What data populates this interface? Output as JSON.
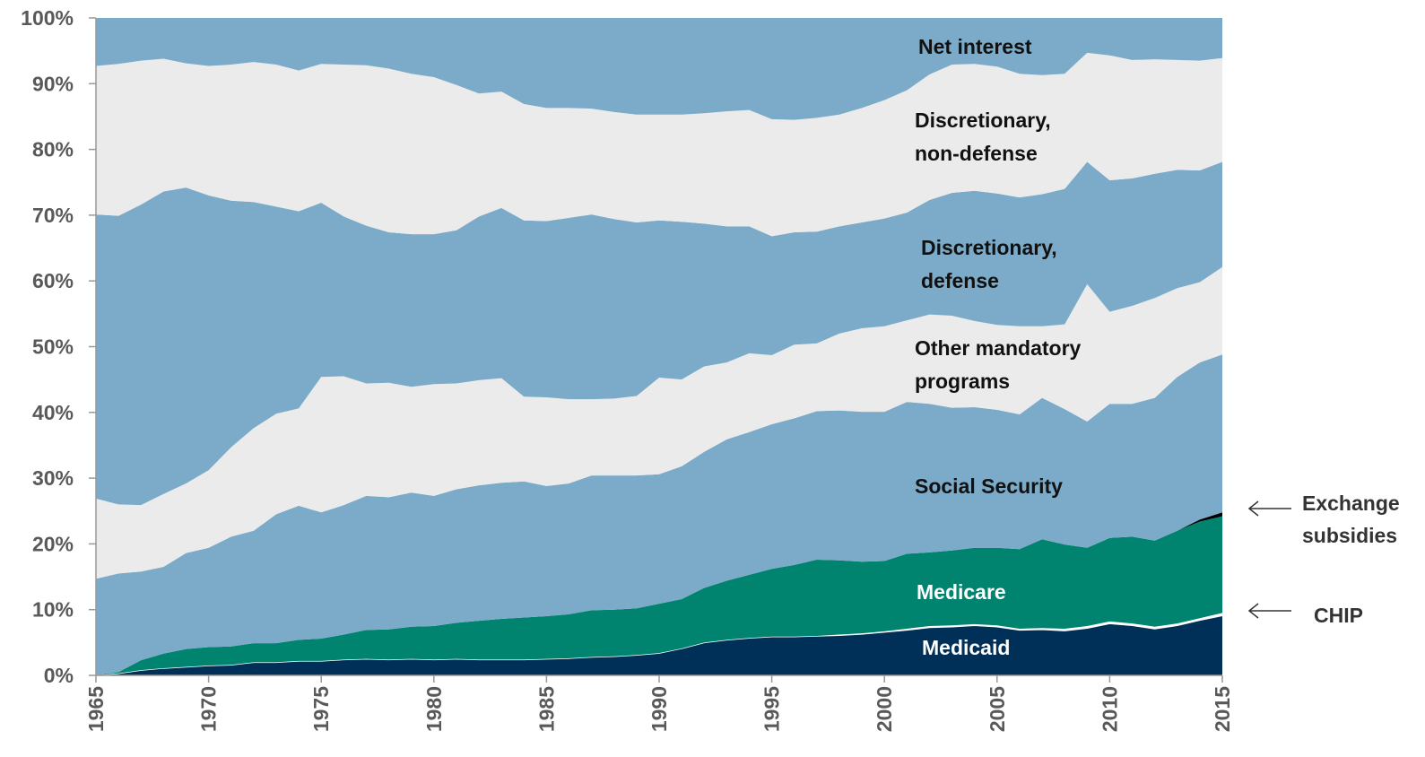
{
  "chart_data": {
    "type": "stacked-area",
    "x": [
      1965,
      1966,
      1967,
      1968,
      1969,
      1970,
      1971,
      1972,
      1973,
      1974,
      1975,
      1976,
      1977,
      1978,
      1979,
      1980,
      1981,
      1982,
      1983,
      1984,
      1985,
      1986,
      1987,
      1988,
      1989,
      1990,
      1991,
      1992,
      1993,
      1994,
      1995,
      1996,
      1997,
      1998,
      1999,
      2000,
      2001,
      2002,
      2003,
      2004,
      2005,
      2006,
      2007,
      2008,
      2009,
      2010,
      2011,
      2012,
      2013,
      2014,
      2015
    ],
    "xlim": [
      1965,
      2015
    ],
    "xticks": [
      1965,
      1970,
      1975,
      1980,
      1985,
      1990,
      1995,
      2000,
      2005,
      2010,
      2015
    ],
    "ylim": [
      0,
      100
    ],
    "yticks": [
      {
        "value": 0,
        "label": "0%"
      },
      {
        "value": 10,
        "label": "10%"
      },
      {
        "value": 20,
        "label": "20%"
      },
      {
        "value": 30,
        "label": "30%"
      },
      {
        "value": 40,
        "label": "40%"
      },
      {
        "value": 50,
        "label": "50%"
      },
      {
        "value": 60,
        "label": "60%"
      },
      {
        "value": 70,
        "label": "70%"
      },
      {
        "value": 80,
        "label": "80%"
      },
      {
        "value": 90,
        "label": "90%"
      },
      {
        "value": 100,
        "label": "100%"
      }
    ],
    "series": [
      {
        "name": "Medicaid",
        "color": "#003057",
        "values": [
          0,
          0.3,
          0.8,
          1.1,
          1.3,
          1.5,
          1.6,
          2.0,
          2.0,
          2.2,
          2.2,
          2.4,
          2.5,
          2.4,
          2.5,
          2.4,
          2.5,
          2.4,
          2.4,
          2.4,
          2.5,
          2.6,
          2.8,
          2.9,
          3.1,
          3.4,
          4.1,
          5.0,
          5.4,
          5.7,
          5.9,
          5.9,
          6.0,
          6.1,
          6.3,
          6.6,
          6.9,
          7.3,
          7.4,
          7.6,
          7.4,
          6.9,
          7.0,
          6.8,
          7.2,
          7.9,
          7.6,
          7.1,
          7.6,
          8.4,
          9.1
        ]
      },
      {
        "name": "CHIP",
        "color": "#ffffff",
        "values": [
          0,
          0,
          0,
          0,
          0,
          0,
          0,
          0,
          0,
          0,
          0,
          0,
          0,
          0,
          0,
          0,
          0,
          0,
          0,
          0,
          0,
          0,
          0,
          0,
          0,
          0,
          0,
          0,
          0,
          0,
          0,
          0,
          0,
          0.1,
          0.1,
          0.1,
          0.2,
          0.2,
          0.2,
          0.2,
          0.2,
          0.2,
          0.2,
          0.3,
          0.3,
          0.3,
          0.3,
          0.3,
          0.3,
          0.3,
          0.4
        ]
      },
      {
        "name": "Medicare",
        "color": "#00836f",
        "values": [
          0,
          0.2,
          1.5,
          2.2,
          2.7,
          2.8,
          2.8,
          2.9,
          2.9,
          3.2,
          3.4,
          3.8,
          4.4,
          4.6,
          4.9,
          5.1,
          5.5,
          5.9,
          6.2,
          6.4,
          6.5,
          6.7,
          7.1,
          7.1,
          7.1,
          7.5,
          7.5,
          8.3,
          9.0,
          9.6,
          10.3,
          10.9,
          11.6,
          11.3,
          10.9,
          10.7,
          11.4,
          11.2,
          11.4,
          11.6,
          11.8,
          12.1,
          13.5,
          12.8,
          11.9,
          12.7,
          13.2,
          13.1,
          14.1,
          14.7,
          14.7
        ]
      },
      {
        "name": "Exchange subsidies",
        "color": "#000000",
        "values": [
          0,
          0,
          0,
          0,
          0,
          0,
          0,
          0,
          0,
          0,
          0,
          0,
          0,
          0,
          0,
          0,
          0,
          0,
          0,
          0,
          0,
          0,
          0,
          0,
          0,
          0,
          0,
          0,
          0,
          0,
          0,
          0,
          0,
          0,
          0,
          0,
          0,
          0,
          0,
          0,
          0,
          0,
          0,
          0,
          0,
          0,
          0,
          0,
          0,
          0.3,
          0.6
        ]
      },
      {
        "name": "Social Security",
        "color": "#7babc8",
        "values": [
          14.7,
          15.0,
          13.5,
          13.2,
          14.6,
          15.1,
          16.7,
          17.1,
          19.6,
          20.4,
          19.2,
          19.7,
          20.4,
          20.1,
          20.4,
          19.8,
          20.3,
          20.6,
          20.7,
          20.7,
          19.8,
          19.9,
          20.5,
          20.4,
          20.2,
          19.7,
          20.2,
          20.7,
          21.5,
          21.7,
          22.0,
          22.3,
          22.6,
          22.8,
          22.8,
          22.7,
          23.1,
          22.6,
          21.7,
          21.4,
          21.0,
          20.5,
          21.5,
          20.6,
          19.2,
          20.4,
          20.2,
          21.7,
          23.4,
          23.9,
          24.0
        ]
      },
      {
        "name": "Other mandatory programs",
        "color": "#ebebeb",
        "values": [
          12.2,
          10.5,
          10.1,
          11.1,
          10.6,
          11.8,
          13.6,
          15.6,
          15.3,
          14.8,
          20.6,
          19.6,
          17.1,
          17.4,
          16.1,
          17.0,
          16.1,
          16.0,
          15.9,
          12.9,
          13.5,
          12.8,
          11.6,
          11.7,
          12.1,
          14.7,
          13.2,
          13.0,
          11.7,
          12.0,
          10.5,
          11.2,
          10.3,
          11.7,
          12.7,
          13.0,
          12.4,
          13.6,
          14.0,
          13.1,
          12.9,
          13.4,
          10.9,
          12.9,
          20.9,
          14.0,
          14.9,
          15.2,
          13.5,
          12.2,
          13.3
        ]
      },
      {
        "name": "Discretionary, defense",
        "color": "#7babc8",
        "values": [
          43.2,
          43.9,
          45.7,
          46.0,
          45.0,
          41.8,
          37.5,
          34.4,
          31.5,
          30.0,
          26.5,
          24.3,
          24.0,
          22.9,
          23.2,
          22.8,
          23.3,
          24.9,
          25.9,
          26.8,
          26.8,
          27.6,
          28.1,
          27.3,
          26.4,
          23.9,
          24.0,
          21.7,
          20.7,
          19.3,
          18.1,
          17.1,
          17.0,
          16.3,
          16.1,
          16.4,
          16.4,
          17.4,
          18.7,
          19.8,
          20.0,
          19.6,
          20.1,
          20.6,
          18.6,
          20.0,
          19.4,
          18.9,
          18.0,
          17.0,
          16.0
        ]
      },
      {
        "name": "Discretionary, non-defense",
        "color": "#ebebeb",
        "values": [
          22.6,
          23.1,
          21.9,
          20.2,
          18.9,
          19.7,
          20.7,
          21.3,
          21.6,
          21.4,
          21.1,
          23.1,
          24.4,
          24.9,
          24.4,
          23.9,
          22.1,
          18.7,
          17.7,
          17.7,
          17.2,
          16.7,
          16.1,
          16.3,
          16.4,
          16.1,
          16.3,
          16.8,
          17.5,
          17.7,
          17.8,
          17.1,
          17.3,
          17.0,
          17.4,
          18.0,
          18.6,
          19.1,
          19.5,
          19.3,
          19.3,
          18.8,
          18.1,
          17.5,
          16.6,
          19.0,
          18.0,
          17.4,
          16.7,
          16.7,
          15.8
        ]
      },
      {
        "name": "Net interest",
        "color": "#7babc8",
        "values": [
          7.3,
          7.0,
          6.5,
          6.2,
          6.9,
          7.3,
          7.1,
          6.7,
          7.1,
          8.0,
          7.0,
          7.1,
          7.2,
          7.7,
          8.5,
          9.0,
          10.2,
          11.5,
          11.2,
          13.1,
          13.7,
          13.7,
          13.8,
          14.3,
          14.7,
          14.7,
          14.7,
          14.5,
          14.2,
          14.0,
          15.4,
          15.5,
          15.2,
          14.7,
          13.7,
          12.5,
          11.0,
          8.6,
          7.1,
          7.0,
          7.4,
          8.5,
          8.7,
          8.5,
          5.3,
          5.7,
          6.4,
          6.3,
          6.4,
          6.5,
          6.1
        ]
      }
    ]
  }
}
